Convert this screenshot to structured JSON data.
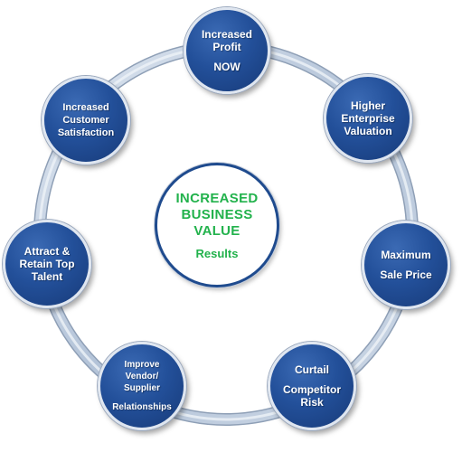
{
  "colors": {
    "node_fill": "#23509a",
    "node_text": "#ffffff",
    "center_text": "#22b24c",
    "center_border": "#1f4b8e",
    "ring": "#b9c7d9"
  },
  "center": {
    "lines": [
      "INCREASED",
      "BUSINESS",
      "VALUE"
    ],
    "result": "Results"
  },
  "nodes": [
    {
      "id": "increased-profit",
      "lines": [
        "Increased",
        "Profit"
      ],
      "extra": "NOW"
    },
    {
      "id": "higher-enterprise-valuation",
      "lines": [
        "Higher",
        "Enterprise",
        "Valuation"
      ]
    },
    {
      "id": "maximum-sale-price",
      "lines": [
        "Maximum",
        "Sale Price"
      ]
    },
    {
      "id": "curtail-competitor-risk",
      "lines": [
        "Curtail",
        "Competitor",
        "Risk"
      ]
    },
    {
      "id": "improve-vendor-supplier",
      "lines": [
        "Improve",
        "Vendor/",
        "Supplier",
        "Relationships"
      ]
    },
    {
      "id": "attract-retain-talent",
      "lines": [
        "Attract &",
        "Retain Top",
        "Talent"
      ]
    },
    {
      "id": "customer-satisfaction",
      "lines": [
        "Increased",
        "Customer",
        "Satisfaction"
      ]
    }
  ]
}
